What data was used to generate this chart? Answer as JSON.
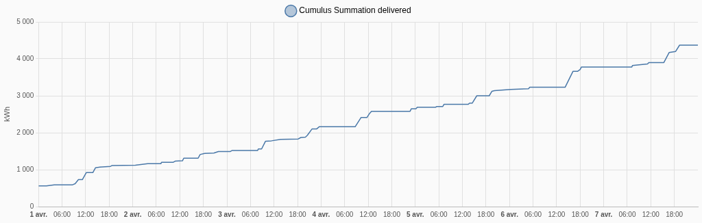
{
  "chart_data": {
    "type": "line",
    "ylabel": "kWh",
    "legend": "top",
    "grid": true,
    "marker": "none",
    "line_style": "solid",
    "xlim": [
      "--04-01T00:00",
      "--04-08T00:00"
    ],
    "xticks": [
      {
        "value": "--04-01T00:00",
        "label": "1 avr."
      },
      {
        "value": "--04-01T06:00",
        "label": "06:00"
      },
      {
        "value": "--04-01T12:00",
        "label": "12:00"
      },
      {
        "value": "--04-01T18:00",
        "label": "18:00"
      },
      {
        "value": "--04-02T00:00",
        "label": "2 avr."
      },
      {
        "value": "--04-02T06:00",
        "label": "06:00"
      },
      {
        "value": "--04-02T12:00",
        "label": "12:00"
      },
      {
        "value": "--04-02T18:00",
        "label": "18:00"
      },
      {
        "value": "--04-03T00:00",
        "label": "3 avr."
      },
      {
        "value": "--04-03T06:00",
        "label": "06:00"
      },
      {
        "value": "--04-03T12:00",
        "label": "12:00"
      },
      {
        "value": "--04-03T18:00",
        "label": "18:00"
      },
      {
        "value": "--04-04T00:00",
        "label": "4 avr."
      },
      {
        "value": "--04-04T06:00",
        "label": "06:00"
      },
      {
        "value": "--04-04T12:00",
        "label": "12:00"
      },
      {
        "value": "--04-04T18:00",
        "label": "18:00"
      },
      {
        "value": "--04-05T00:00",
        "label": "5 avr."
      },
      {
        "value": "--04-05T06:00",
        "label": "06:00"
      },
      {
        "value": "--04-05T12:00",
        "label": "12:00"
      },
      {
        "value": "--04-05T18:00",
        "label": "18:00"
      },
      {
        "value": "--04-06T00:00",
        "label": "6 avr."
      },
      {
        "value": "--04-06T06:00",
        "label": "06:00"
      },
      {
        "value": "--04-06T12:00",
        "label": "12:00"
      },
      {
        "value": "--04-06T18:00",
        "label": "18:00"
      },
      {
        "value": "--04-07T00:00",
        "label": "7 avr."
      },
      {
        "value": "--04-07T06:00",
        "label": "06:00"
      },
      {
        "value": "--04-07T12:00",
        "label": "12:00"
      },
      {
        "value": "--04-07T18:00",
        "label": "18:00"
      }
    ],
    "ylim": [
      0,
      5000
    ],
    "yticks": [
      0,
      {
        "value": 1000,
        "label": "1 000"
      },
      {
        "value": 2000,
        "label": "2 000"
      },
      {
        "value": 3000,
        "label": "3 000"
      },
      {
        "value": 4000,
        "label": "4 000"
      },
      {
        "value": 5000,
        "label": "5 000"
      }
    ],
    "series": [
      {
        "name": "Cumulus Summation delivered",
        "color": "#4a78a8",
        "x": [
          "--04-01T00:00",
          "--04-01T02:00",
          "--04-01T04:00",
          "--04-01T08:40",
          "--04-01T09:20",
          "--04-01T10:10",
          "--04-01T11:10",
          "--04-01T12:10",
          "--04-01T13:50",
          "--04-01T14:30",
          "--04-01T15:40",
          "--04-01T18:20",
          "--04-01T18:40",
          "--04-02T00:40",
          "--04-02T03:50",
          "--04-02T07:10",
          "--04-02T07:20",
          "--04-02T10:20",
          "--04-02T10:50",
          "--04-02T12:40",
          "--04-02T13:00",
          "--04-02T16:40",
          "--04-02T17:10",
          "--04-02T18:20",
          "--04-02T20:40",
          "--04-02T21:50",
          "--04-03T00:50",
          "--04-03T01:20",
          "--04-03T07:50",
          "--04-03T08:00",
          "--04-03T08:50",
          "--04-03T09:50",
          "--04-03T11:20",
          "--04-03T13:40",
          "--04-03T18:10",
          "--04-03T18:50",
          "--04-03T20:00",
          "--04-03T20:30",
          "--04-03T21:40",
          "--04-03T22:50",
          "--04-03T23:30",
          "--04-04T08:40",
          "--04-04T10:10",
          "--04-04T11:40",
          "--04-04T12:20",
          "--04-04T12:50",
          "--04-04T22:40",
          "--04-04T23:00",
          "--04-05T00:10",
          "--04-05T00:30",
          "--04-05T05:10",
          "--04-05T05:30",
          "--04-05T07:00",
          "--04-05T07:20",
          "--04-05T13:30",
          "--04-05T13:50",
          "--04-05T14:30",
          "--04-05T15:40",
          "--04-05T18:50",
          "--04-05T19:30",
          "--04-05T20:10",
          "--04-06T00:20",
          "--04-06T04:50",
          "--04-06T05:10",
          "--04-06T14:10",
          "--04-06T16:10",
          "--04-06T17:20",
          "--04-06T18:00",
          "--04-06T18:20",
          "--04-07T07:10",
          "--04-07T07:20",
          "--04-07T11:10",
          "--04-07T11:30",
          "--04-07T15:20",
          "--04-07T16:40",
          "--04-07T18:20",
          "--04-07T19:20",
          "--04-08T00:00"
        ],
        "values": [
          560,
          560,
          590,
          590,
          620,
          730,
          730,
          920,
          920,
          1050,
          1070,
          1090,
          1110,
          1120,
          1160,
          1160,
          1200,
          1200,
          1230,
          1240,
          1310,
          1310,
          1410,
          1440,
          1450,
          1490,
          1490,
          1520,
          1520,
          1560,
          1560,
          1770,
          1780,
          1820,
          1830,
          1870,
          1880,
          1930,
          2100,
          2100,
          2160,
          2160,
          2410,
          2410,
          2520,
          2580,
          2580,
          2650,
          2650,
          2690,
          2690,
          2710,
          2710,
          2770,
          2770,
          2800,
          2800,
          3000,
          3000,
          3120,
          3140,
          3170,
          3190,
          3230,
          3230,
          3660,
          3660,
          3710,
          3780,
          3780,
          3820,
          3860,
          3900,
          3900,
          4170,
          4200,
          4370,
          4370
        ]
      }
    ]
  }
}
